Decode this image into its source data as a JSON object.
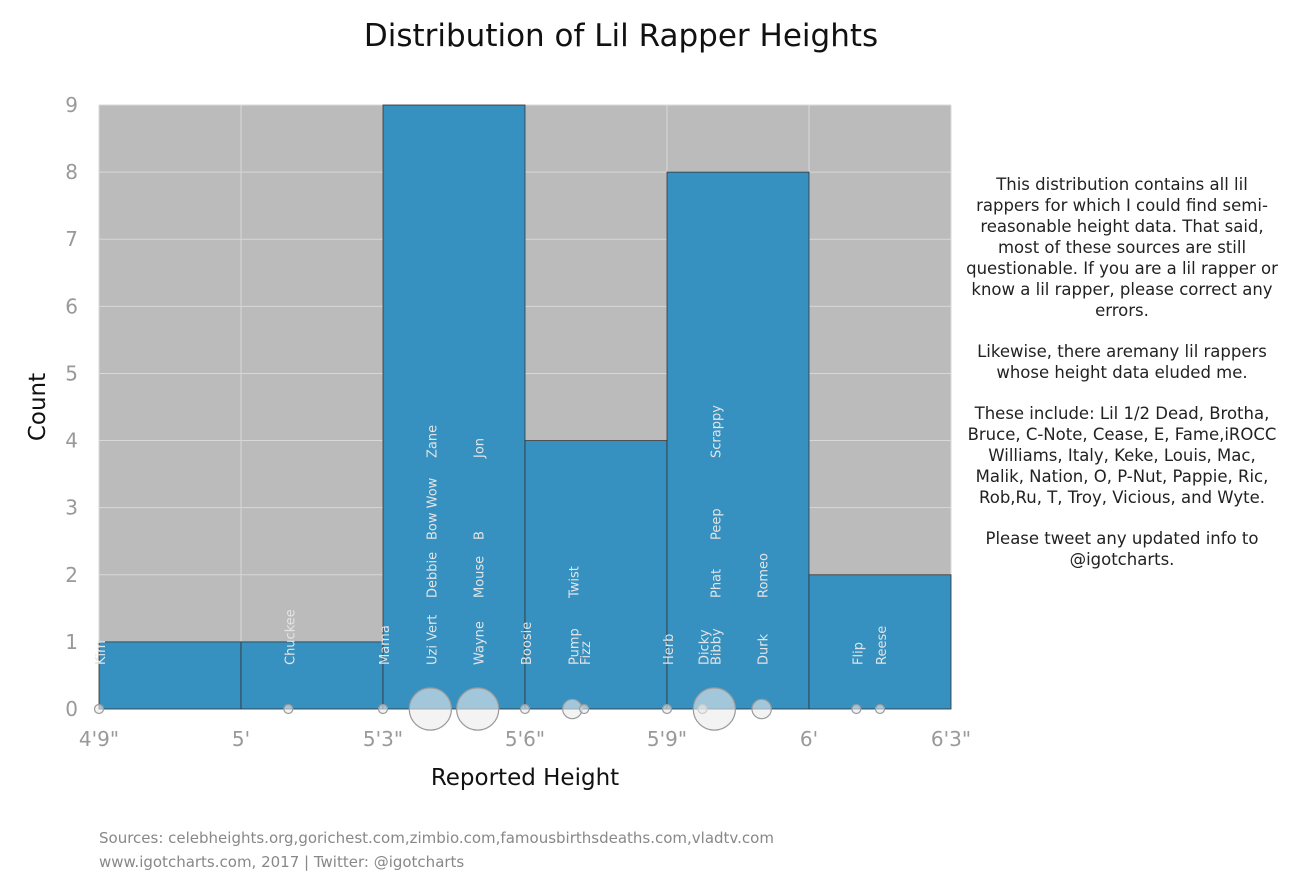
{
  "title": "Distribution of Lil Rapper Heights",
  "notes": [
    "This distribution contains all lil rappers for which I could find semi-reasonable height data. That said, most of these sources are still questionable. If you are a lil rapper or know a lil rapper, please correct any errors.",
    "Likewise, there aremany lil rappers whose height data eluded me.",
    "These include: Lil 1/2 Dead, Brotha, Bruce, C-Note, Cease, E, Fame,iROCC Williams, Italy, Keke, Louis, Mac, Malik, Nation, O, P-Nut, Pappie, Ric, Rob,Ru, T, Troy, Vicious, and Wyte.",
    "Please tweet any updated info to @igotcharts."
  ],
  "footer": {
    "sources": "Sources: celebheights.org,gorichest.com,zimbio.com,famousbirthsdeaths.com,vladtv.com",
    "credit": "www.igotcharts.com, 2017 | Twitter: @igotcharts"
  },
  "colors": {
    "bar": "#3690c0",
    "plot_bg": "#bbbbbb",
    "grid": "#d8d8d8",
    "tick": "#999999"
  },
  "chart_data": {
    "type": "bar",
    "xlabel": "Reported Height",
    "ylabel": "Count",
    "x_unit": "inches",
    "xlim": [
      57,
      75
    ],
    "ylim": [
      0,
      9
    ],
    "x_ticks": [
      {
        "value": 57,
        "label": "4'9\""
      },
      {
        "value": 60,
        "label": "5'"
      },
      {
        "value": 63,
        "label": "5'3\""
      },
      {
        "value": 66,
        "label": "5'6\""
      },
      {
        "value": 69,
        "label": "5'9\""
      },
      {
        "value": 72,
        "label": "6'"
      },
      {
        "value": 75,
        "label": "6'3\""
      }
    ],
    "y_ticks": [
      0,
      1,
      2,
      3,
      4,
      5,
      6,
      7,
      8,
      9
    ],
    "bins": [
      {
        "start": 57,
        "end": 60,
        "count": 1
      },
      {
        "start": 60,
        "end": 63,
        "count": 1
      },
      {
        "start": 63,
        "end": 66,
        "count": 9
      },
      {
        "start": 66,
        "end": 69,
        "count": 4
      },
      {
        "start": 69,
        "end": 72,
        "count": 8
      },
      {
        "start": 72,
        "end": 75,
        "count": 2
      }
    ],
    "rappers": [
      {
        "name": "Kim",
        "height": 57,
        "level": 1
      },
      {
        "name": "Chuckee",
        "height": 61,
        "level": 1
      },
      {
        "name": "Mama",
        "height": 63,
        "level": 1
      },
      {
        "name": "Uzi Vert",
        "height": 64,
        "level": 1
      },
      {
        "name": "Debbie",
        "height": 64,
        "level": 2
      },
      {
        "name": "Bow Wow",
        "height": 64,
        "level": 3
      },
      {
        "name": "Zane",
        "height": 64,
        "level": 4
      },
      {
        "name": "Wayne",
        "height": 65,
        "level": 1
      },
      {
        "name": "Mouse",
        "height": 65,
        "level": 2
      },
      {
        "name": "B",
        "height": 65,
        "level": 3
      },
      {
        "name": "Jon",
        "height": 65,
        "level": 4
      },
      {
        "name": "Boosie",
        "height": 66,
        "level": 1
      },
      {
        "name": "Pump",
        "height": 67,
        "level": 1
      },
      {
        "name": "Twist",
        "height": 67,
        "level": 2
      },
      {
        "name": "Fizz",
        "height": 67.25,
        "level": 1
      },
      {
        "name": "Herb",
        "height": 69,
        "level": 1
      },
      {
        "name": "Dicky",
        "height": 69.75,
        "level": 1
      },
      {
        "name": "Bibby",
        "height": 70,
        "level": 1
      },
      {
        "name": "Phat",
        "height": 70,
        "level": 2
      },
      {
        "name": "Peep",
        "height": 70,
        "level": 3
      },
      {
        "name": "Scrappy",
        "height": 70,
        "level": 4
      },
      {
        "name": "Durk",
        "height": 71,
        "level": 1
      },
      {
        "name": "Romeo",
        "height": 71,
        "level": 2
      },
      {
        "name": "Flip",
        "height": 73,
        "level": 1
      },
      {
        "name": "Reese",
        "height": 73.5,
        "level": 1
      }
    ],
    "height_counts": [
      {
        "height": 57,
        "count": 1
      },
      {
        "height": 61,
        "count": 1
      },
      {
        "height": 63,
        "count": 1
      },
      {
        "height": 64,
        "count": 4
      },
      {
        "height": 65,
        "count": 4
      },
      {
        "height": 66,
        "count": 1
      },
      {
        "height": 67,
        "count": 2
      },
      {
        "height": 67.25,
        "count": 1
      },
      {
        "height": 69,
        "count": 1
      },
      {
        "height": 69.75,
        "count": 1
      },
      {
        "height": 70,
        "count": 4
      },
      {
        "height": 71,
        "count": 2
      },
      {
        "height": 73,
        "count": 1
      },
      {
        "height": 73.5,
        "count": 1
      }
    ]
  }
}
